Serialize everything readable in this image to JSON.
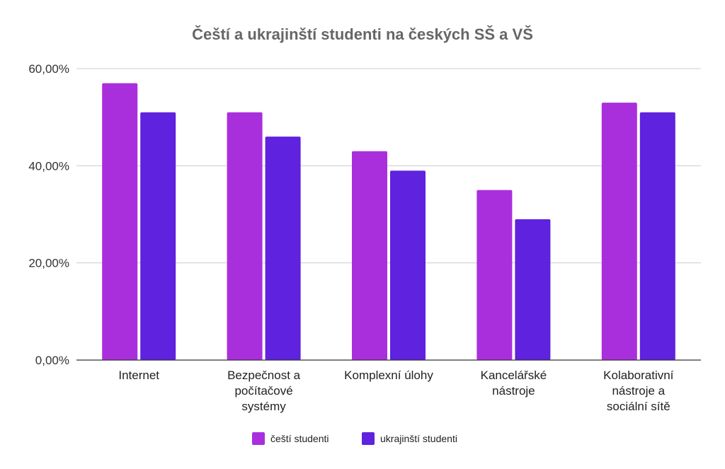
{
  "chart_data": {
    "type": "bar",
    "title": "Čeští a ukrajinští studenti na českých SŠ a VŠ",
    "xlabel": "",
    "ylabel": "",
    "categories": [
      [
        "Internet"
      ],
      [
        "Bezpečnost a",
        "počítačové",
        "systémy"
      ],
      [
        "Komplexní úlohy"
      ],
      [
        "Kancelářské",
        "nástroje"
      ],
      [
        "Kolaborativní",
        "nástroje a",
        "sociální sítě"
      ]
    ],
    "series": [
      {
        "name": "čeští studenti",
        "color": "#a92fdc",
        "values": [
          57,
          51,
          43,
          35,
          53
        ]
      },
      {
        "name": "ukrajinští studenti",
        "color": "#5f22de",
        "values": [
          51,
          46,
          39,
          29,
          51
        ]
      }
    ],
    "ylim": [
      0,
      60
    ],
    "yticks": [
      {
        "value": 0,
        "label": "0,00%"
      },
      {
        "value": 20,
        "label": "20,00%"
      },
      {
        "value": 40,
        "label": "40,00%"
      },
      {
        "value": 60,
        "label": "60,00%"
      }
    ],
    "grid": true,
    "legend_position": "bottom"
  }
}
